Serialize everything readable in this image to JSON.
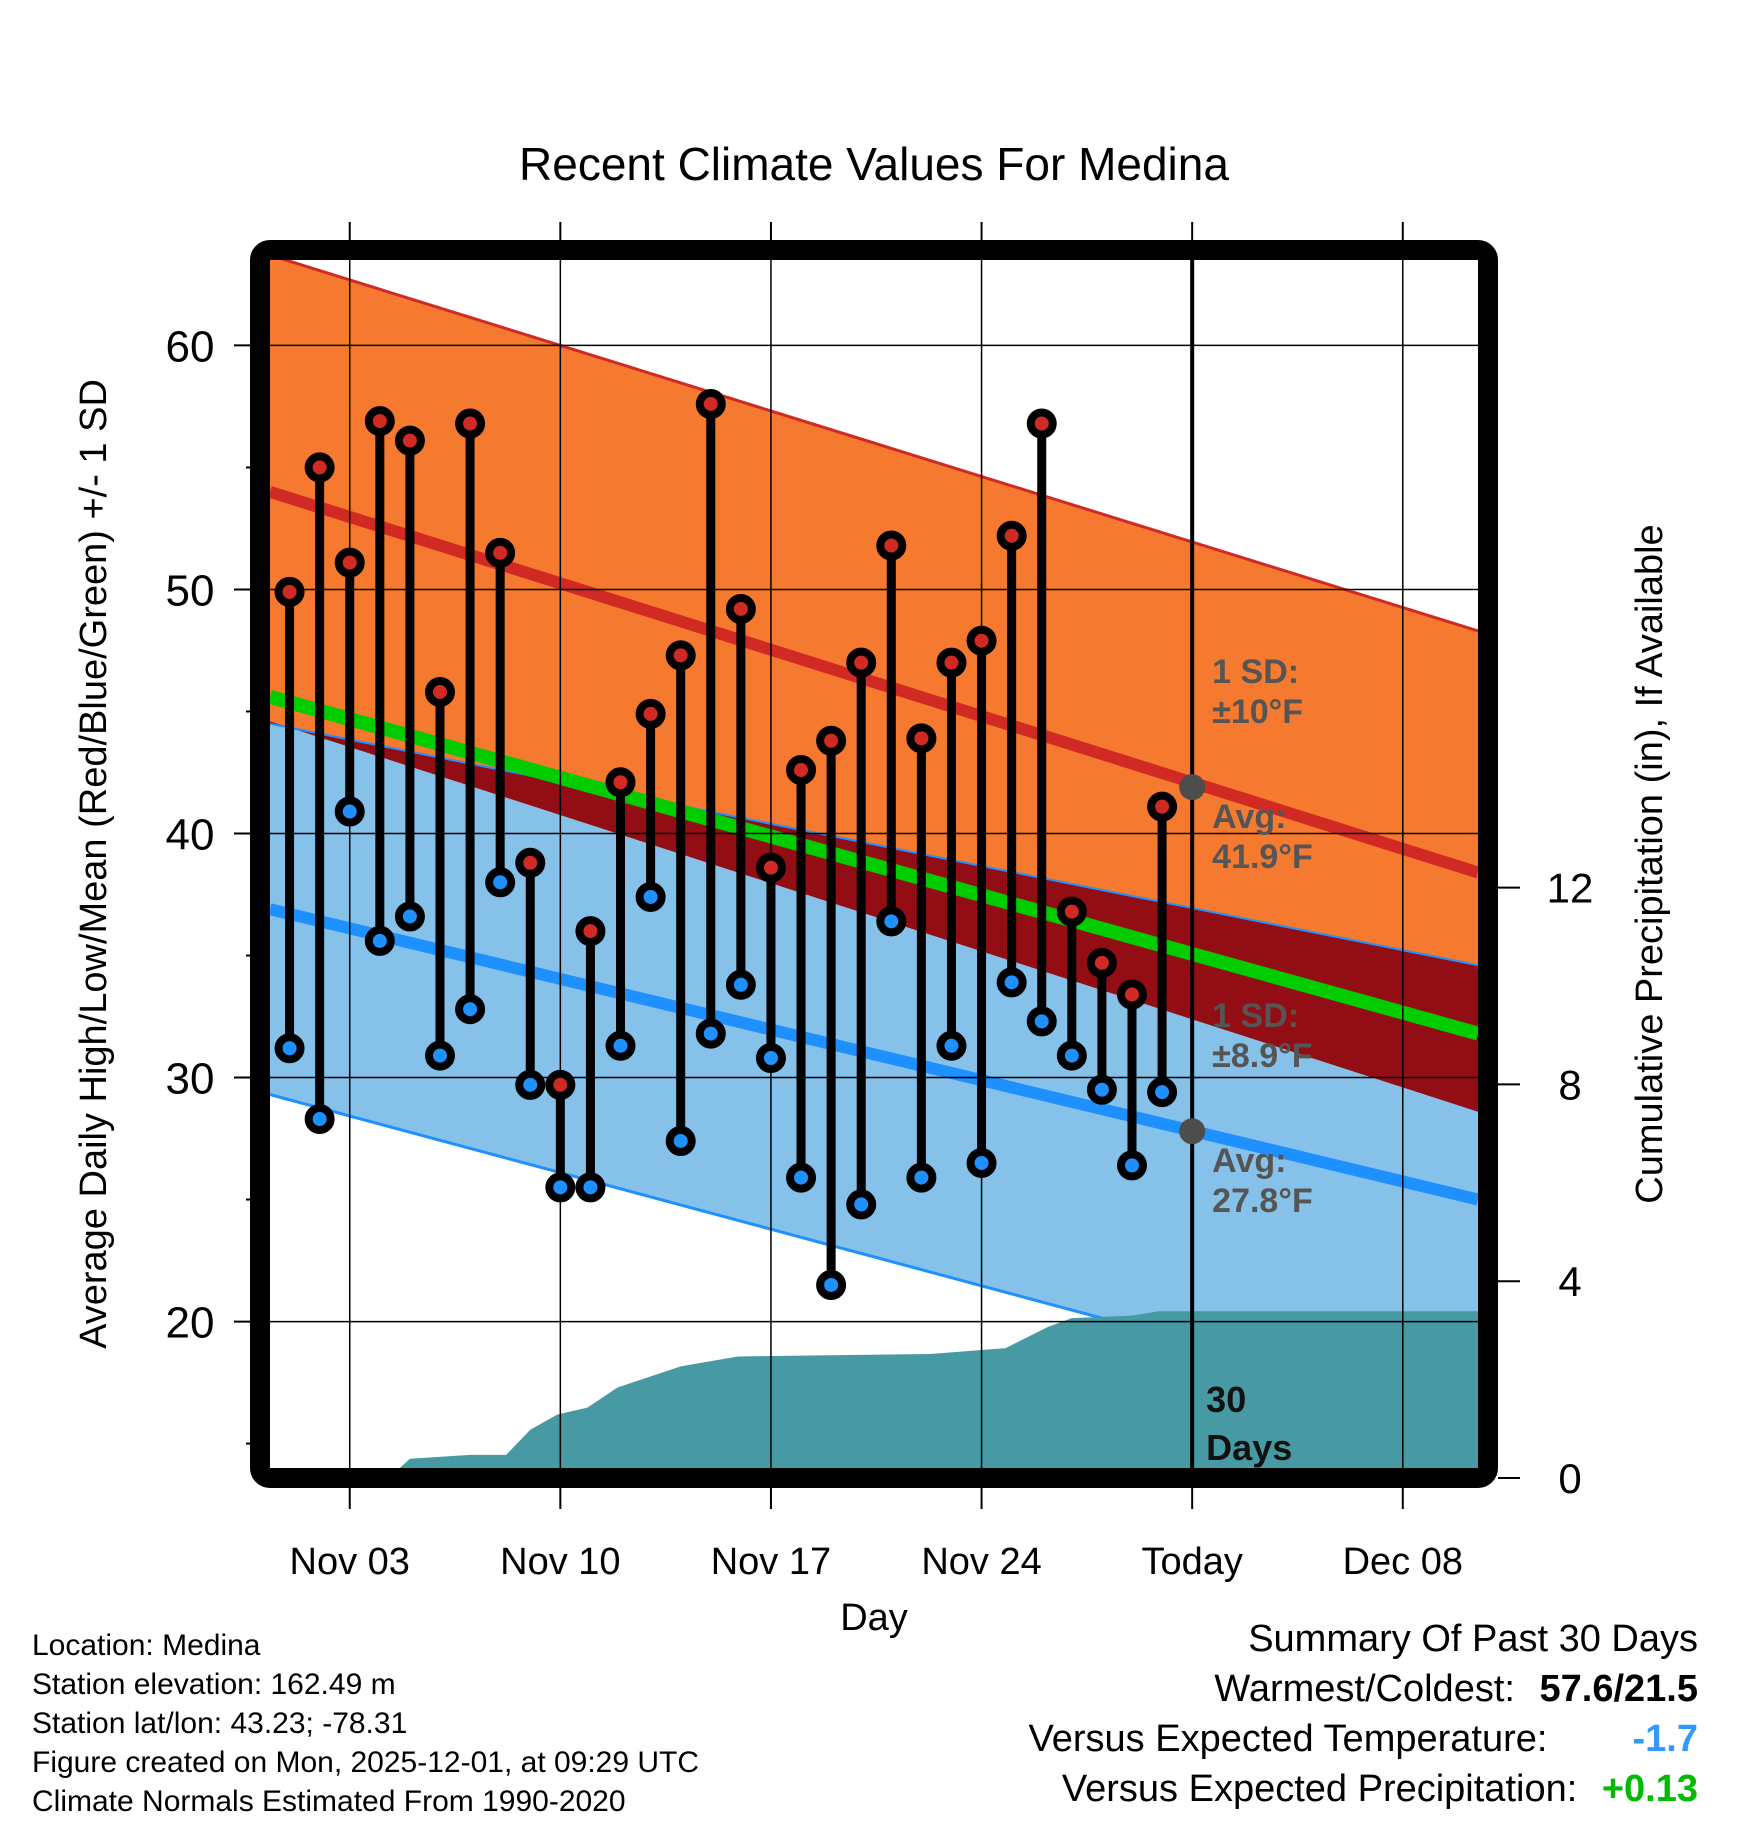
{
  "chart_data": {
    "type": "line",
    "title": "Recent Climate Values For Medina",
    "xlabel": "Day",
    "ylabel": "Average Daily High/Low/Mean (Red/Blue/Green) +/- 1 SD",
    "y2label": "Cumulative Precipitation (in), If Available",
    "ylim": [
      14,
      63.5
    ],
    "y2lim": [
      0,
      20
    ],
    "xlim_days_from_nov1": [
      -0.65,
      39.5
    ],
    "grid": true,
    "xticks": [
      {
        "day": 2,
        "label": "Nov 03"
      },
      {
        "day": 9,
        "label": "Nov 10"
      },
      {
        "day": 16,
        "label": "Nov 17"
      },
      {
        "day": 23,
        "label": "Nov 24"
      },
      {
        "day": 30,
        "label": "Today"
      },
      {
        "day": 37,
        "label": "Dec 08"
      }
    ],
    "yticks": [
      20,
      30,
      40,
      50,
      60
    ],
    "y2ticks": [
      0,
      4,
      8,
      12
    ],
    "today_day": 30,
    "dates": [
      "Nov 01",
      "Nov 02",
      "Nov 03",
      "Nov 04",
      "Nov 05",
      "Nov 06",
      "Nov 07",
      "Nov 08",
      "Nov 09",
      "Nov 10",
      "Nov 11",
      "Nov 12",
      "Nov 13",
      "Nov 14",
      "Nov 15",
      "Nov 16",
      "Nov 17",
      "Nov 18",
      "Nov 19",
      "Nov 20",
      "Nov 21",
      "Nov 22",
      "Nov 23",
      "Nov 24",
      "Nov 25",
      "Nov 26",
      "Nov 27",
      "Nov 28",
      "Nov 29",
      "Nov 30"
    ],
    "series": [
      {
        "name": "Daily High",
        "color": "#d12a24",
        "values": [
          49.9,
          55.0,
          51.1,
          56.9,
          56.1,
          45.8,
          56.8,
          51.5,
          38.8,
          29.7,
          36.0,
          42.1,
          44.9,
          47.3,
          57.6,
          49.2,
          38.6,
          42.6,
          43.8,
          47.0,
          51.8,
          43.9,
          47.0,
          47.9,
          52.2,
          56.8,
          36.8,
          34.7,
          33.4,
          41.1
        ]
      },
      {
        "name": "Daily Low",
        "color": "#1e90ff",
        "values": [
          31.2,
          28.3,
          40.9,
          35.6,
          36.6,
          30.9,
          32.8,
          38.0,
          29.7,
          25.5,
          25.5,
          31.3,
          37.4,
          27.4,
          31.8,
          33.8,
          30.8,
          25.9,
          21.5,
          24.8,
          36.4,
          25.9,
          31.3,
          26.5,
          33.9,
          32.3,
          30.9,
          29.5,
          26.4,
          29.4
        ]
      }
    ],
    "normals": {
      "days": [
        -0.65,
        39.5
      ],
      "avg_high": [
        54.0,
        38.4
      ],
      "avg_high_plus_sd": [
        63.7,
        48.3
      ],
      "avg_high_minus_sd": [
        44.6,
        28.6
      ],
      "avg_mean": [
        45.6,
        31.8
      ],
      "avg_low": [
        36.9,
        25.0
      ],
      "avg_low_plus_sd": [
        44.5,
        34.6
      ],
      "avg_low_minus_sd": [
        29.3,
        16.0
      ]
    },
    "precip_cumulative": {
      "days": [
        3.3,
        4.0,
        6.0,
        7.2,
        8.0,
        8.9,
        9.9,
        10.9,
        13.0,
        14.9,
        21.3,
        23.8,
        25.2,
        26.0,
        28.0,
        28.9,
        39.5
      ],
      "values": [
        0.0,
        0.39,
        0.47,
        0.47,
        0.98,
        1.29,
        1.43,
        1.84,
        2.27,
        2.47,
        2.52,
        2.64,
        3.07,
        3.25,
        3.3,
        3.39,
        3.39
      ]
    },
    "annotations": {
      "high_sd_line1": "1 SD:",
      "high_sd_line2": "±10°F",
      "high_avg_line1": "Avg:",
      "high_avg_line2": "41.9°F",
      "low_sd_line1": "1 SD:",
      "low_sd_line2": "±8.9°F",
      "low_avg_line1": "Avg:",
      "low_avg_line2": "27.8°F",
      "window_line1": "30",
      "window_line2": "Days",
      "today_avg_high": 41.9,
      "today_avg_low": 27.8
    },
    "colors": {
      "high_band": "#f5792e",
      "high_line": "#d12a24",
      "overlap_band": "#930d14",
      "low_band": "#85c1e8",
      "low_line": "#1e90ff",
      "mean_line": "#00cc00",
      "precip": "#4799a3",
      "annotation": "#555555"
    }
  },
  "info": {
    "location": "Location: Medina",
    "elevation": "Station elevation: 162.49 m",
    "latlon": "Station lat/lon: 43.23; -78.31",
    "created": "Figure created on Mon, 2025-12-01, at 09:29 UTC",
    "normals": "Climate Normals Estimated From 1990-2020"
  },
  "summary": {
    "title": "Summary Of Past 30 Days",
    "warmest_coldest_label": "Warmest/Coldest:",
    "warmest_coldest_value": "57.6/21.5",
    "temp_label": "Versus Expected Temperature:",
    "temp_value": "-1.7",
    "temp_color": "#3399ff",
    "precip_label": "Versus Expected Precipitation:",
    "precip_value": "+0.13",
    "precip_color": "#00bb00"
  }
}
